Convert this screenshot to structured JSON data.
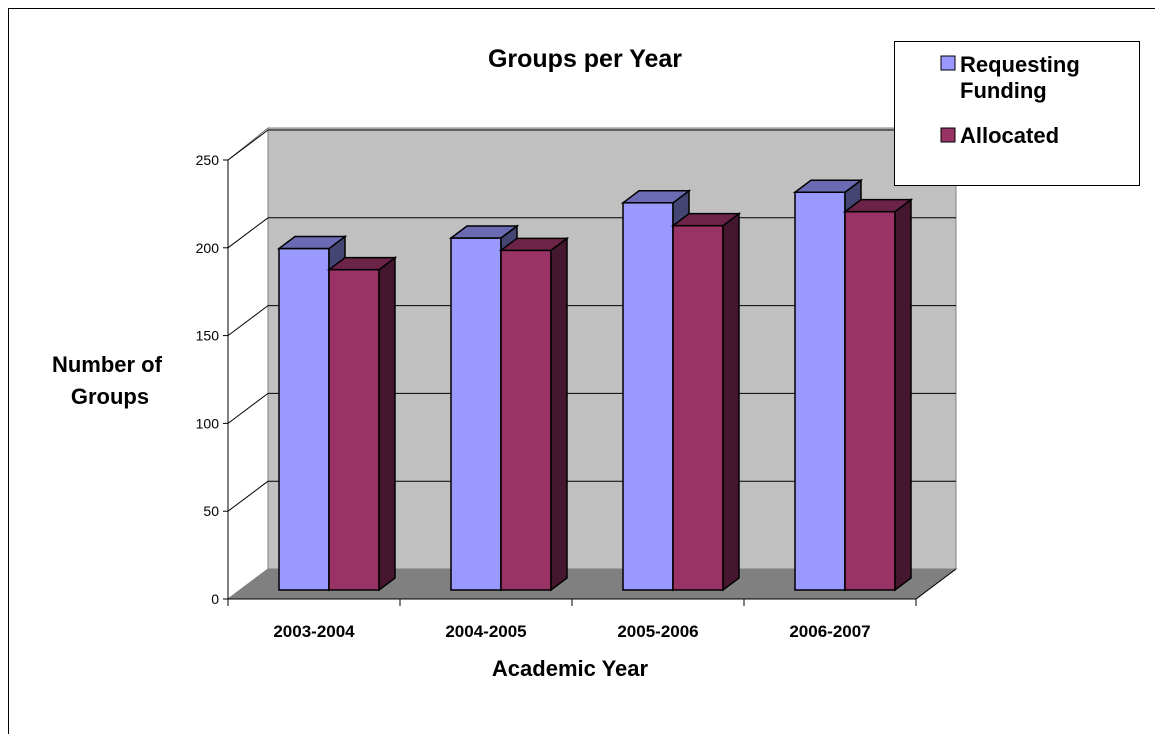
{
  "chart_data": {
    "type": "bar",
    "title": "Groups per Year",
    "xlabel": "Academic Year",
    "ylabel": "Number of Groups",
    "ylabel_lines": [
      "Number of",
      "Groups"
    ],
    "categories": [
      "2003-2004",
      "2004-2005",
      "2005-2006",
      "2006-2007"
    ],
    "series": [
      {
        "name": "Requesting Funding",
        "name_lines": [
          "Requesting",
          "Funding"
        ],
        "values": [
          194,
          200,
          220,
          226
        ],
        "color": "#9999ff"
      },
      {
        "name": "Allocated",
        "name_lines": [
          "Allocated"
        ],
        "values": [
          182,
          193,
          207,
          215
        ],
        "color": "#993366"
      }
    ],
    "ylim": [
      0,
      250
    ],
    "yticks": [
      0,
      50,
      100,
      150,
      200,
      250
    ],
    "grid": true,
    "legend_position": "top-right",
    "style": "3d-column",
    "colors": {
      "wall": "#c0c0c0",
      "floor": "#808080"
    }
  }
}
